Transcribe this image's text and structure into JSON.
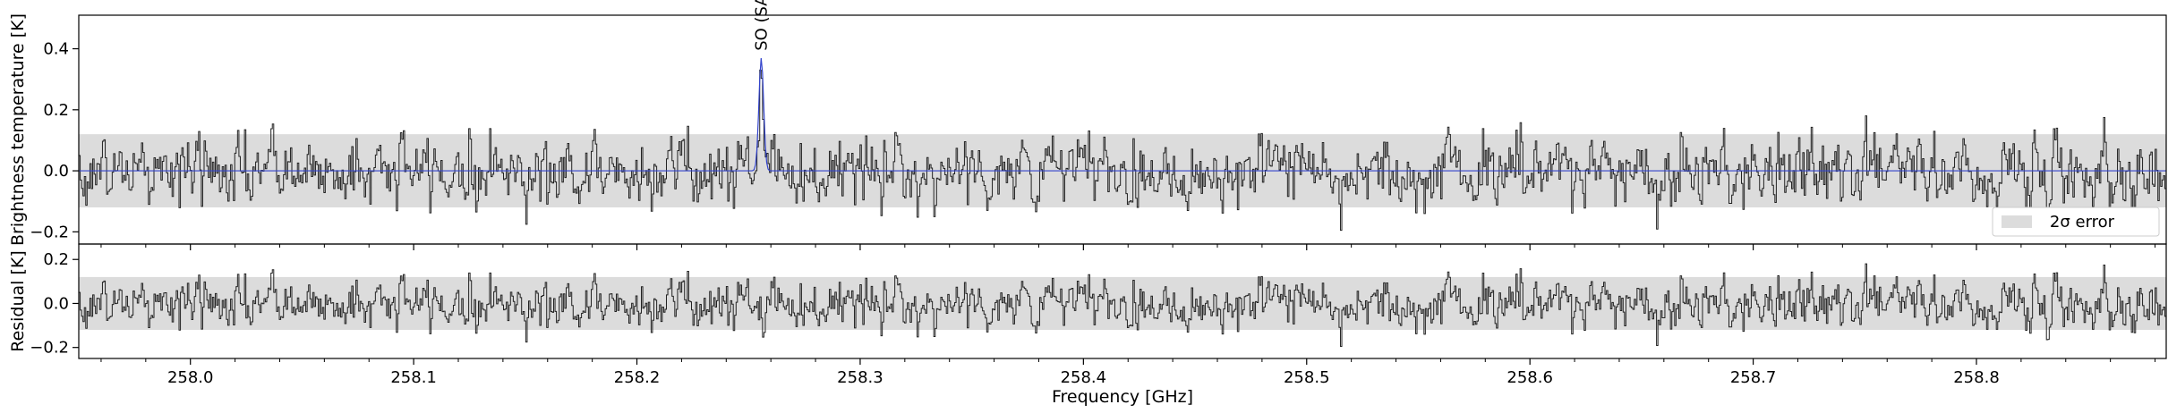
{
  "chart_data": {
    "type": "line",
    "x_range": [
      257.95,
      258.885
    ],
    "x_ticks": [
      258.0,
      258.1,
      258.2,
      258.3,
      258.4,
      258.5,
      258.6,
      258.7,
      258.8
    ],
    "x_tick_labels": [
      "258.0",
      "258.1",
      "258.2",
      "258.3",
      "258.4",
      "258.5",
      "258.6",
      "258.7",
      "258.8"
    ],
    "x_label": "Frequency [GHz]",
    "panels": [
      {
        "name": "spectrum",
        "y_label": "Brightness temperature [K]",
        "y_range": [
          -0.24,
          0.51
        ],
        "y_ticks": [
          -0.2,
          0.0,
          0.2,
          0.4
        ],
        "y_tick_labels": [
          "−0.2",
          "0.0",
          "0.2",
          "0.4"
        ],
        "error_band": [
          -0.12,
          0.12
        ],
        "observed": {
          "color": "#222222",
          "noise_rms": 0.06
        },
        "model": {
          "color": "#3344cc",
          "lines": [
            {
              "label": "SO (SA)",
              "center_ghz": 258.2557,
              "peak_k": 0.37,
              "fwhm_ghz": 0.0025
            }
          ]
        },
        "legend": {
          "label": "2σ error",
          "position": "lower-right",
          "color": "#dcdcdc"
        }
      },
      {
        "name": "residual",
        "y_label": "Residual [K]",
        "y_range": [
          -0.25,
          0.27
        ],
        "y_ticks": [
          -0.2,
          0.0,
          0.2
        ],
        "y_tick_labels": [
          "−0.2",
          "0.0",
          "0.2"
        ],
        "error_band": [
          -0.12,
          0.12
        ]
      }
    ]
  }
}
